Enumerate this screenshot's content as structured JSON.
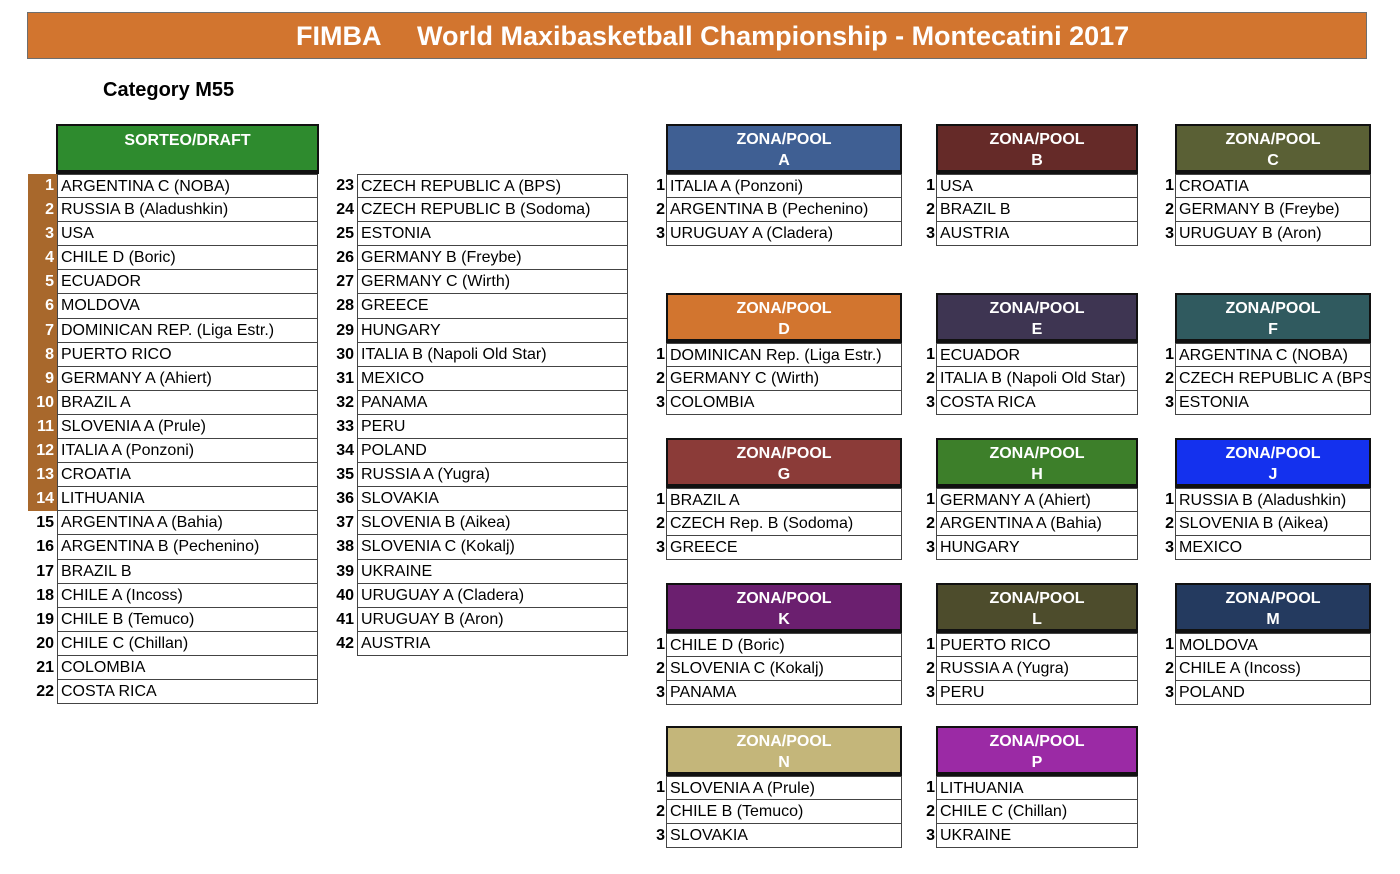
{
  "header": {
    "org": "FIMBA",
    "title": "World Maxibasketball Championship - Montecatini 2017"
  },
  "category": "Category M55",
  "draft": {
    "title": "SORTEO/DRAFT",
    "col1": [
      {
        "n": "1",
        "team": "ARGENTINA C (NOBA)"
      },
      {
        "n": "2",
        "team": "RUSSIA B (Aladushkin)"
      },
      {
        "n": "3",
        "team": "USA"
      },
      {
        "n": "4",
        "team": "CHILE D (Boric)"
      },
      {
        "n": "5",
        "team": "ECUADOR"
      },
      {
        "n": "6",
        "team": "MOLDOVA"
      },
      {
        "n": "7",
        "team": "DOMINICAN  REP. (Liga Estr.)"
      },
      {
        "n": "8",
        "team": "PUERTO RICO"
      },
      {
        "n": "9",
        "team": "GERMANY A (Ahiert)"
      },
      {
        "n": "10",
        "team": "BRAZIL A"
      },
      {
        "n": "11",
        "team": "SLOVENIA A (Prule)"
      },
      {
        "n": "12",
        "team": "ITALIA A (Ponzoni)"
      },
      {
        "n": "13",
        "team": "CROATIA"
      },
      {
        "n": "14",
        "team": "LITHUANIA"
      },
      {
        "n": "15",
        "team": "ARGENTINA A (Bahia)"
      },
      {
        "n": "16",
        "team": "ARGENTINA B (Pechenino)"
      },
      {
        "n": "17",
        "team": "BRAZIL B"
      },
      {
        "n": "18",
        "team": "CHILE A (Incoss)"
      },
      {
        "n": "19",
        "team": "CHILE B (Temuco)"
      },
      {
        "n": "20",
        "team": "CHILE C (Chillan)"
      },
      {
        "n": "21",
        "team": "COLOMBIA"
      },
      {
        "n": "22",
        "team": "COSTA RICA"
      }
    ],
    "col2": [
      {
        "n": "23",
        "team": "CZECH REPUBLIC A (BPS)"
      },
      {
        "n": "24",
        "team": "CZECH REPUBLIC B (Sodoma)"
      },
      {
        "n": "25",
        "team": "ESTONIA"
      },
      {
        "n": "26",
        "team": "GERMANY B (Freybe)"
      },
      {
        "n": "27",
        "team": "GERMANY C (Wirth)"
      },
      {
        "n": "28",
        "team": "GREECE"
      },
      {
        "n": "29",
        "team": "HUNGARY"
      },
      {
        "n": "30",
        "team": "ITALIA B (Napoli Old Star)"
      },
      {
        "n": "31",
        "team": "MEXICO"
      },
      {
        "n": "32",
        "team": "PANAMA"
      },
      {
        "n": "33",
        "team": "PERU"
      },
      {
        "n": "34",
        "team": "POLAND"
      },
      {
        "n": "35",
        "team": "RUSSIA A (Yugra)"
      },
      {
        "n": "36",
        "team": "SLOVAKIA"
      },
      {
        "n": "37",
        "team": "SLOVENIA B (Aikea)"
      },
      {
        "n": "38",
        "team": "SLOVENIA C (Kokalj)"
      },
      {
        "n": "39",
        "team": "UKRAINE"
      },
      {
        "n": "40",
        "team": "URUGUAY A (Cladera)"
      },
      {
        "n": "41",
        "team": "URUGUAY B (Aron)"
      },
      {
        "n": "42",
        "team": "AUSTRIA"
      }
    ]
  },
  "pools": [
    {
      "label": "ZONA/POOL",
      "letter": "A",
      "color": "#3f5f93",
      "teams": [
        "ITALIA A (Ponzoni)",
        "ARGENTINA B (Pechenino)",
        "URUGUAY A (Cladera)"
      ]
    },
    {
      "label": "ZONA/POOL",
      "letter": "B",
      "color": "#652a28",
      "teams": [
        "USA",
        "BRAZIL B",
        "AUSTRIA"
      ]
    },
    {
      "label": "ZONA/POOL",
      "letter": "C",
      "color": "#5a6035",
      "teams": [
        "CROATIA",
        "GERMANY B (Freybe)",
        "URUGUAY B (Aron)"
      ]
    },
    {
      "label": "ZONA/POOL",
      "letter": "D",
      "color": "#d2752f",
      "teams": [
        "DOMINICAN Rep. (Liga Estr.)",
        "GERMANY C (Wirth)",
        "COLOMBIA"
      ]
    },
    {
      "label": "ZONA/POOL",
      "letter": "E",
      "color": "#3e3552",
      "teams": [
        "ECUADOR",
        "ITALIA B (Napoli Old Star)",
        "COSTA RICA"
      ]
    },
    {
      "label": "ZONA/POOL",
      "letter": "F",
      "color": "#305a5f",
      "teams": [
        "ARGENTINA C (NOBA)",
        "CZECH REPUBLIC A (BPS)",
        "ESTONIA"
      ]
    },
    {
      "label": "ZONA/POOL",
      "letter": "G",
      "color": "#8b3b38",
      "teams": [
        "BRAZIL A",
        "CZECH Rep. B (Sodoma)",
        "GREECE"
      ]
    },
    {
      "label": "ZONA/POOL",
      "letter": "H",
      "color": "#3d7f2a",
      "teams": [
        "GERMANY A (Ahiert)",
        "ARGENTINA A (Bahia)",
        "HUNGARY"
      ]
    },
    {
      "label": "ZONA/POOL",
      "letter": "J",
      "color": "#1431ee",
      "teams": [
        "RUSSIA B (Aladushkin)",
        "SLOVENIA B (Aikea)",
        "MEXICO"
      ]
    },
    {
      "label": "ZONA/POOL",
      "letter": "K",
      "color": "#6b1f6f",
      "teams": [
        "CHILE D (Boric)",
        "SLOVENIA C (Kokalj)",
        "PANAMA"
      ]
    },
    {
      "label": "ZONA/POOL",
      "letter": "L",
      "color": "#4d4c2c",
      "teams": [
        "PUERTO RICO",
        "RUSSIA A (Yugra)",
        "PERU"
      ]
    },
    {
      "label": "ZONA/POOL",
      "letter": "M",
      "color": "#243a5f",
      "teams": [
        "MOLDOVA",
        "CHILE A (Incoss)",
        "POLAND"
      ]
    },
    {
      "label": "ZONA/POOL",
      "letter": "N",
      "color": "#c4b67a",
      "teams": [
        "SLOVENIA A (Prule)",
        "CHILE B (Temuco)",
        "SLOVAKIA"
      ]
    },
    {
      "label": "ZONA/POOL",
      "letter": "P",
      "color": "#9b2aa5",
      "teams": [
        "LITHUANIA",
        "CHILE C (Chillan)",
        "UKRAINE"
      ]
    }
  ]
}
